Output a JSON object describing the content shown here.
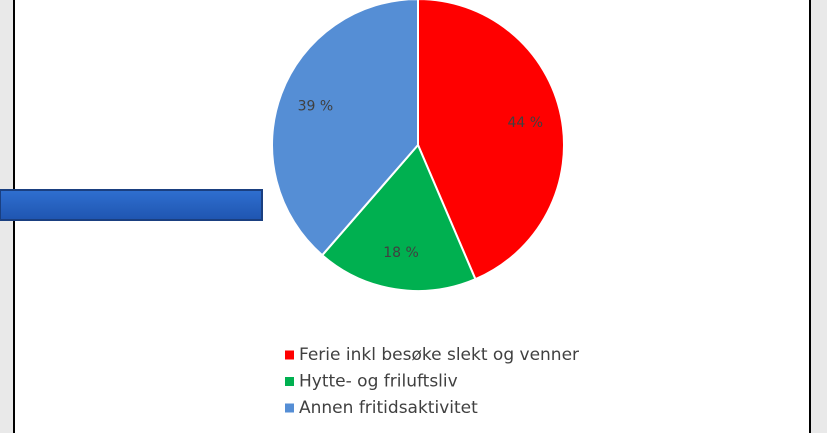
{
  "chart_data": {
    "type": "pie",
    "categories": [
      "Ferie inkl besøke slekt og venner",
      "Hytte- og friluftsliv",
      "Annen fritidsaktivitet"
    ],
    "values": [
      44,
      18,
      39
    ],
    "value_labels": [
      "44 %",
      "18 %",
      "39 %"
    ],
    "colors": [
      "#ff0000",
      "#00b050",
      "#558ed5"
    ]
  }
}
